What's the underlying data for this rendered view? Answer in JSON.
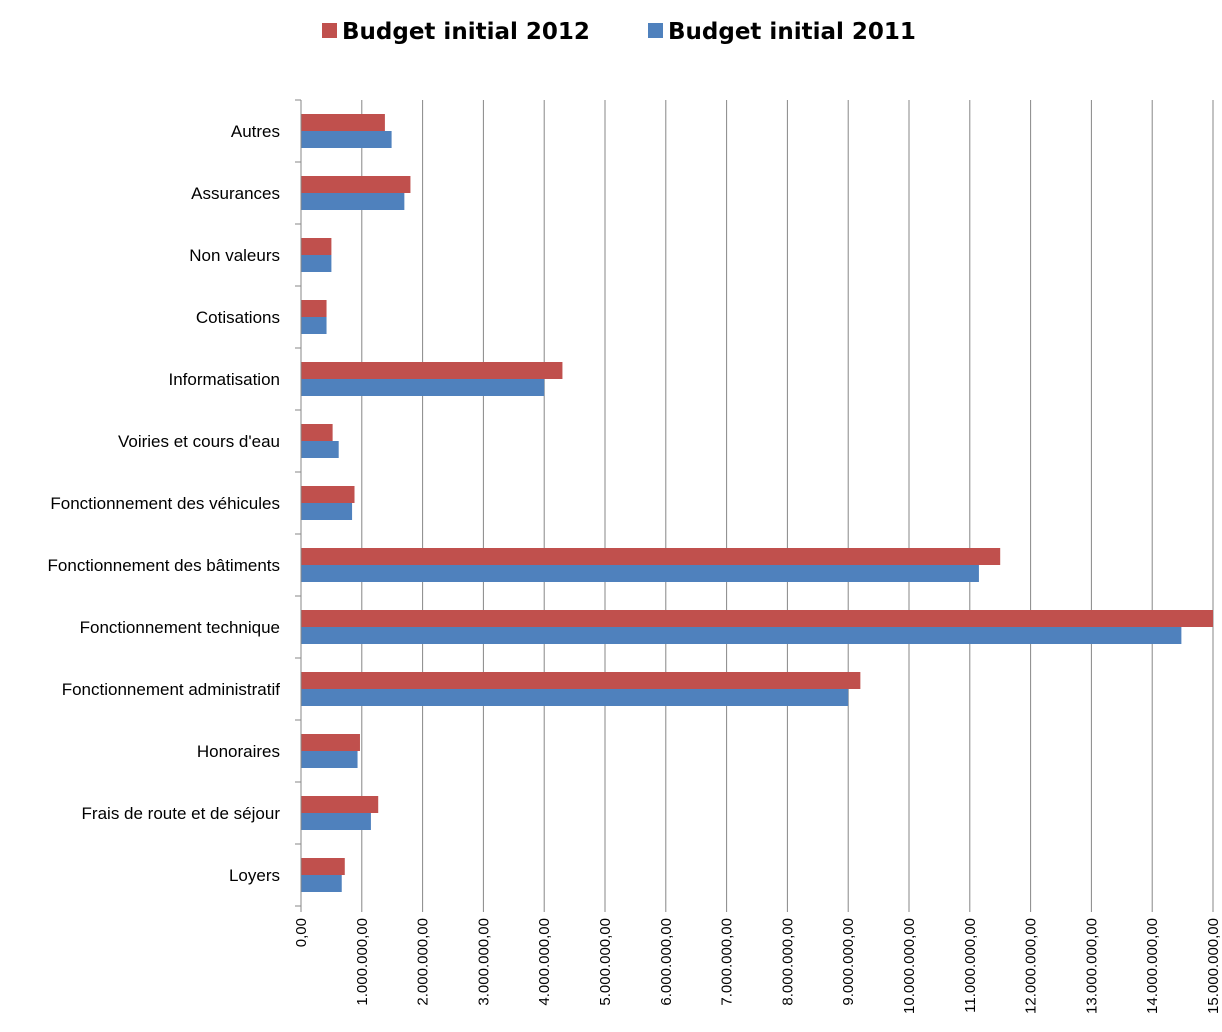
{
  "chart_data": {
    "type": "bar",
    "orientation": "horizontal",
    "categories": [
      "Loyers",
      "Frais de route et de séjour",
      "Honoraires",
      "Fonctionnement administratif",
      "Fonctionnement technique",
      "Fonctionnement des bâtiments",
      "Fonctionnement des véhicules",
      "Voiries et cours d'eau",
      "Informatisation",
      "Cotisations",
      "Non valeurs",
      "Assurances",
      "Autres"
    ],
    "series": [
      {
        "name": "Budget initial 2012",
        "color": "#C0504D",
        "values": [
          720000,
          1270000,
          970000,
          9200000,
          15000000,
          11500000,
          880000,
          520000,
          4300000,
          420000,
          500000,
          1800000,
          1380000
        ]
      },
      {
        "name": "Budget initial 2011",
        "color": "#4F81BD",
        "values": [
          670000,
          1150000,
          930000,
          9000000,
          14480000,
          11150000,
          840000,
          620000,
          4000000,
          420000,
          500000,
          1700000,
          1490000
        ]
      }
    ],
    "xlim": [
      0,
      15000000
    ],
    "x_ticks": [
      "0,00",
      "1.000.000,00",
      "2.000.000,00",
      "3.000.000,00",
      "4.000.000,00",
      "5.000.000,00",
      "6.000.000,00",
      "7.000.000,00",
      "8.000.000,00",
      "9.000.000,00",
      "10.000.000,00",
      "11.000.000,00",
      "12.000.000,00",
      "13.000.000,00",
      "14.000.000,00",
      "15.000.000,00"
    ],
    "grid": "vertical",
    "legend_position": "top",
    "title": "",
    "xlabel": "",
    "ylabel": ""
  }
}
